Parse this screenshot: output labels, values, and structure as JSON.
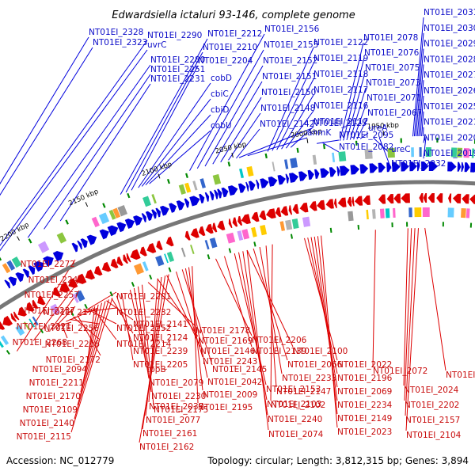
{
  "title": "Edwardsiella ictaluri 93-146, complete genome",
  "footer": {
    "accession": "Accession: NC_012779",
    "summary": "Topology: circular; Length: 3,812,315 bp; Genes: 3,894"
  },
  "colors": {
    "forward": "#0000dd",
    "reverse": "#dd0000",
    "backbone": "#777777",
    "rna": "#008800"
  },
  "ticks": [
    "2250 kbp",
    "2200 kbp",
    "2150 kbp",
    "2100 kbp",
    "2050 kbp",
    "2000 kbp",
    "1950 kbp"
  ],
  "forward_labels": [
    "NT01EI_2328",
    "NT01EI_2323",
    "NT01EI_2290",
    "uvrC",
    "NT01EI_2280",
    "NT01EI_2251",
    "NT01EI_2231",
    "NT01EI_2212",
    "NT01EI_2210",
    "NT01EI_2204",
    "cobD",
    "cbiC",
    "cbiD",
    "cobU",
    "NT01EI_2156",
    "NT01EI_2155",
    "NT01EI_2152",
    "NT01EI_2151",
    "NT01EI_2150",
    "NT01EI_2148",
    "NT01EI_2142",
    "NT01EI_2122",
    "NT01EI_2119",
    "NT01EI_2118",
    "NT01EI_2117",
    "NT01EI_2116",
    "NT01EI_2112",
    "NT01EI_2125",
    "anmK",
    "NT01EI_2095",
    "NT01EI_2082",
    "NT01EI_2078",
    "NT01EI_2076",
    "NT01EI_2075",
    "NT01EI_2073",
    "NT01EI_2071",
    "NT01EI_2067",
    "ureA",
    "ureC",
    "NT01EI_2032",
    "NT01EI_2031",
    "NT01EI_2030",
    "NT01EI_2029",
    "NT01EI_2028",
    "NT01EI_2027",
    "NT01EI_2026",
    "NT01EI_2025",
    "NT01EI_2021",
    "NT01EI_2020",
    "NT01EI_2019"
  ],
  "reverse_labels": [
    "NT01EI_2272",
    "NT01EI_2249",
    "NT01EI_2257",
    "NT01EI_2237",
    "NT01EI_2221",
    "NT01EI_2268",
    "NT01EI_2201",
    "NT01EI_2232",
    "NT01EI_2252",
    "NT01EI_2214",
    "NT01EI_2177",
    "NT01EI_2256",
    "NT01EI_2216",
    "NT01EI_2172",
    "NT01EI_2141",
    "NT01EI_2124",
    "NT01EI_2239",
    "NT01EI_2205",
    "NT01EI_2178",
    "NT01EI_2169",
    "NT01EI_2146",
    "NT01EI_2243",
    "NT01EI_2206",
    "NT01EI_2139",
    "NT01EI_2094",
    "NT01EI_2211",
    "NT01EI_2170",
    "NT01EI_2109",
    "NT01EI_2140",
    "NT01EI_2115",
    "tppB",
    "NT01EI_2079",
    "NT01EI_2230",
    "NT01EI_2175",
    "NT01EI_2145",
    "NT01EI_2042",
    "NT01EI_2009",
    "NT01EI_2195",
    "NT01EI_2100",
    "NT01EI_2066",
    "NT01EI_2233",
    "NT01EI_2147",
    "NT01EI_2102",
    "NT01EI_2022",
    "NT01EI_2196",
    "NT01EI_2069",
    "NT01EI_2234",
    "NT01EI_2149",
    "NT01EI_2023",
    "NT01EI_2072",
    "NT01EI_2198",
    "NT01EI_2153",
    "NT01EI_2103",
    "NT01EI_2240",
    "NT01EI_2074",
    "NT01EI_2024",
    "NT01EI_2202",
    "NT01EI_2157",
    "NT01EI_2104",
    "NT01EI_2037",
    "NT01EI_2077",
    "NT01EI_2161",
    "NT01EI_2162"
  ]
}
